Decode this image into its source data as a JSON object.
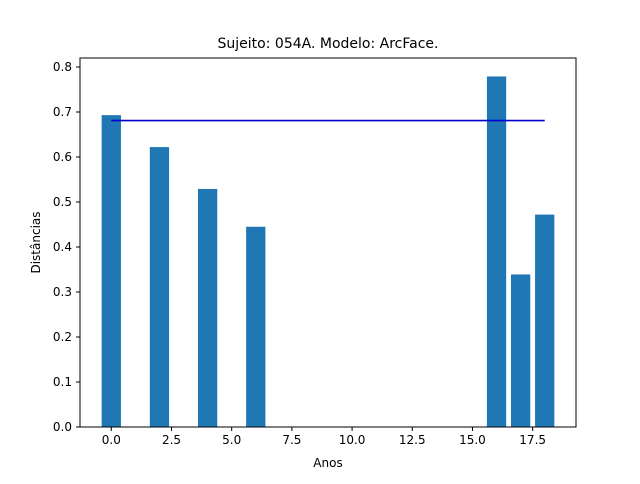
{
  "chart_data": {
    "type": "bar",
    "title": "Sujeito: 054A. Modelo: ArcFace.",
    "xlabel": "Anos",
    "ylabel": "Distâncias",
    "xlim": [
      -1.3,
      19.3
    ],
    "ylim": [
      0.0,
      0.82
    ],
    "x_ticks": [
      0.0,
      2.5,
      5.0,
      7.5,
      10.0,
      12.5,
      15.0,
      17.5
    ],
    "x_tick_labels": [
      "0.0",
      "2.5",
      "5.0",
      "7.5",
      "10.0",
      "12.5",
      "15.0",
      "17.5"
    ],
    "y_ticks": [
      0.0,
      0.1,
      0.2,
      0.3,
      0.4,
      0.5,
      0.6,
      0.7,
      0.8
    ],
    "y_tick_labels": [
      "0.0",
      "0.1",
      "0.2",
      "0.3",
      "0.4",
      "0.5",
      "0.6",
      "0.7",
      "0.8"
    ],
    "bar_width": 0.8,
    "series": [
      {
        "type": "bar",
        "color": "#1f77b4",
        "x": [
          0,
          2,
          4,
          6,
          16,
          17,
          18
        ],
        "values": [
          0.693,
          0.622,
          0.529,
          0.445,
          0.779,
          0.339,
          0.472
        ]
      },
      {
        "type": "line",
        "color": "#0000cc",
        "x": [
          0,
          18
        ],
        "values": [
          0.681,
          0.681
        ]
      }
    ],
    "grid": false,
    "legend": "none"
  }
}
